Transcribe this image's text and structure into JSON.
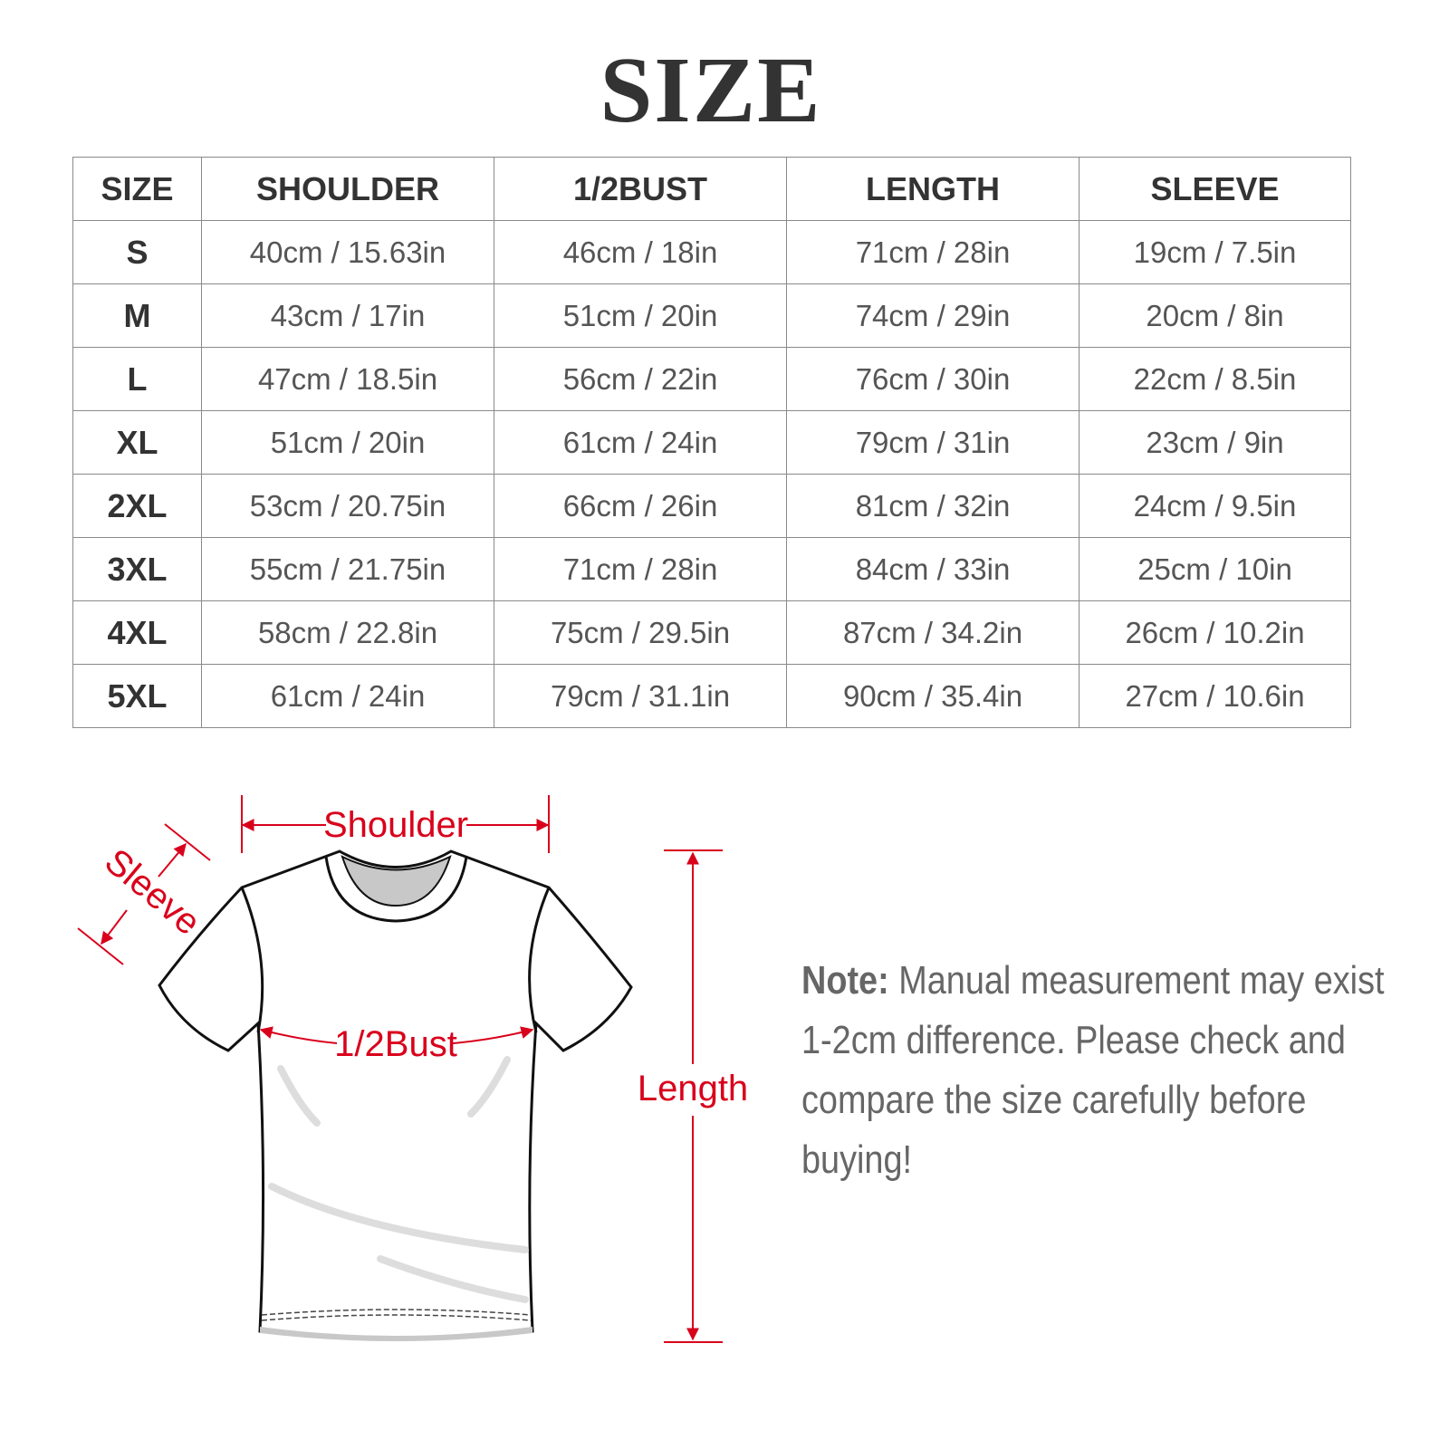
{
  "title": "SIZE",
  "table": {
    "headers": [
      "SIZE",
      "SHOULDER",
      "1/2BUST",
      "LENGTH",
      "SLEEVE"
    ],
    "rows": [
      [
        "S",
        "40cm / 15.63in",
        "46cm / 18in",
        "71cm / 28in",
        "19cm / 7.5in"
      ],
      [
        "M",
        "43cm / 17in",
        "51cm / 20in",
        "74cm / 29in",
        "20cm / 8in"
      ],
      [
        "L",
        "47cm / 18.5in",
        "56cm / 22in",
        "76cm / 30in",
        "22cm / 8.5in"
      ],
      [
        "XL",
        "51cm / 20in",
        "61cm / 24in",
        "79cm / 31in",
        "23cm / 9in"
      ],
      [
        "2XL",
        "53cm / 20.75in",
        "66cm / 26in",
        "81cm / 32in",
        "24cm / 9.5in"
      ],
      [
        "3XL",
        "55cm / 21.75in",
        "71cm / 28in",
        "84cm / 33in",
        "25cm / 10in"
      ],
      [
        "4XL",
        "58cm / 22.8in",
        "75cm / 29.5in",
        "87cm / 34.2in",
        "26cm / 10.2in"
      ],
      [
        "5XL",
        "61cm / 24in",
        "79cm / 31.1in",
        "90cm / 35.4in",
        "27cm / 10.6in"
      ]
    ]
  },
  "diagram": {
    "labels": {
      "shoulder": "Shoulder",
      "sleeve": "Sleeve",
      "bust": "1/2Bust",
      "length": "Length"
    },
    "accent_color": "#d9001b"
  },
  "note": {
    "label": "Note:",
    "text": "Manual measurement may exist 1-2cm difference. Please check and compare the size carefully before buying!"
  }
}
